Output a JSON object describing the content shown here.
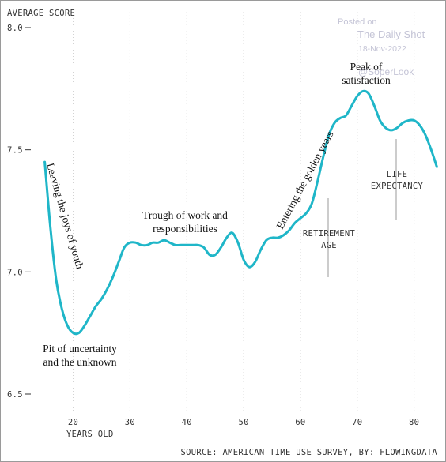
{
  "chart_data": {
    "type": "line",
    "ylabel": "AVERAGE SCORE",
    "xlabel": "YEARS OLD",
    "ylim": [
      6.5,
      8.0
    ],
    "xlim": [
      14.5,
      84.5
    ],
    "y_ticks": [
      "8.0",
      "7.5",
      "7.0",
      "6.5"
    ],
    "y_tick_values": [
      8.0,
      7.5,
      7.0,
      6.5
    ],
    "x_ticks": [
      "20",
      "30",
      "40",
      "50",
      "60",
      "70",
      "80"
    ],
    "x_tick_values": [
      20,
      30,
      40,
      50,
      60,
      70,
      80
    ],
    "grid": "vertical dotted",
    "line_color": "#1fb6c8",
    "series": [
      {
        "x": [
          15,
          16,
          17,
          18,
          19,
          20,
          21,
          22,
          23,
          24,
          25,
          26,
          27,
          28,
          29,
          30,
          31,
          32,
          33,
          34,
          35,
          36,
          37,
          38,
          39,
          40,
          41,
          42,
          43,
          44,
          45,
          46,
          47,
          48,
          49,
          50,
          51,
          52,
          53,
          54,
          55,
          56,
          57,
          58,
          59,
          60,
          61,
          62,
          63,
          64,
          65,
          66,
          67,
          68,
          69,
          70,
          71,
          72,
          73,
          74,
          75,
          76,
          77,
          78,
          79,
          80,
          81,
          82,
          83,
          84
        ],
        "values": [
          7.45,
          7.18,
          6.97,
          6.85,
          6.78,
          6.75,
          6.75,
          6.78,
          6.82,
          6.86,
          6.89,
          6.93,
          6.98,
          7.04,
          7.1,
          7.12,
          7.12,
          7.11,
          7.11,
          7.12,
          7.12,
          7.13,
          7.12,
          7.11,
          7.11,
          7.11,
          7.11,
          7.11,
          7.1,
          7.07,
          7.07,
          7.1,
          7.14,
          7.16,
          7.12,
          7.05,
          7.02,
          7.04,
          7.09,
          7.13,
          7.14,
          7.14,
          7.15,
          7.17,
          7.2,
          7.22,
          7.24,
          7.28,
          7.37,
          7.47,
          7.56,
          7.61,
          7.63,
          7.64,
          7.68,
          7.72,
          7.74,
          7.73,
          7.68,
          7.62,
          7.59,
          7.58,
          7.59,
          7.61,
          7.62,
          7.62,
          7.6,
          7.56,
          7.5,
          7.43
        ]
      }
    ],
    "annotations": [
      {
        "id": "youth",
        "text": "Leaving the joys of youth"
      },
      {
        "id": "pit",
        "text": [
          "Pit of uncertainty",
          "and the unknown"
        ]
      },
      {
        "id": "trough",
        "text": [
          "Trough of work and",
          "responsibilities"
        ]
      },
      {
        "id": "golden",
        "text": "Entering the golden years"
      },
      {
        "id": "peak",
        "text": [
          "Peak of",
          "satisfaction"
        ]
      },
      {
        "id": "retire",
        "text": [
          "RETIREMENT",
          "AGE"
        ]
      },
      {
        "id": "life",
        "text": [
          "LIFE",
          "EXPECTANCY"
        ]
      }
    ],
    "source": "SOURCE: AMERICAN TIME USE SURVEY, BY: FLOWINGDATA"
  },
  "watermark": {
    "posted": "Posted on",
    "site": "The Daily Shot",
    "date": "18-Nov-2022",
    "handle": "@SoperLook"
  }
}
